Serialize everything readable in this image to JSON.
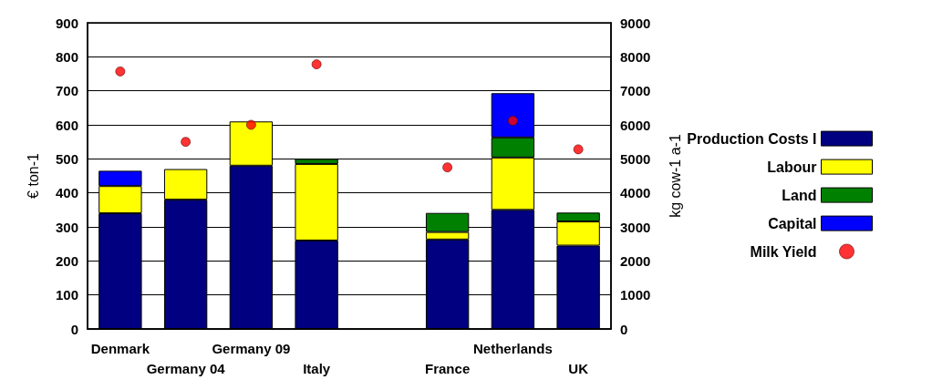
{
  "chart_data": {
    "type": "bar",
    "stacked": true,
    "categories": [
      "Denmark",
      "Germany 04",
      "Germany 09",
      "Italy",
      null,
      "France",
      "Netherlands",
      "UK"
    ],
    "series": [
      {
        "name": "Production Costs I",
        "color": "#000080",
        "values": [
          340,
          380,
          480,
          260,
          null,
          263,
          350,
          245
        ]
      },
      {
        "name": "Labour",
        "color": "#ffff00",
        "values": [
          80,
          90,
          130,
          225,
          null,
          22,
          154,
          71
        ]
      },
      {
        "name": "Land",
        "color": "#008000",
        "values": [
          null,
          null,
          null,
          15,
          null,
          56,
          59,
          26
        ]
      },
      {
        "name": "Capital",
        "color": "#0000ff",
        "values": [
          45,
          null,
          null,
          null,
          null,
          null,
          130,
          null
        ]
      },
      {
        "name": "Milk Yield",
        "type": "scatter",
        "axis": "y2",
        "color": "#ff0000",
        "marker": "circle",
        "values": [
          7570,
          5500,
          6000,
          7780,
          null,
          4750,
          6120,
          5280
        ]
      }
    ],
    "ylabel": "€ ton-1",
    "y2label": "kg cow-1 a-1",
    "ylim": [
      0,
      900
    ],
    "yticks": [
      0,
      100,
      200,
      300,
      400,
      500,
      600,
      700,
      800,
      900
    ],
    "y2lim": [
      0,
      9000
    ],
    "y2ticks": [
      0,
      1000,
      2000,
      3000,
      4000,
      5000,
      6000,
      7000,
      8000,
      9000
    ],
    "grid": "y",
    "legend": "right"
  }
}
